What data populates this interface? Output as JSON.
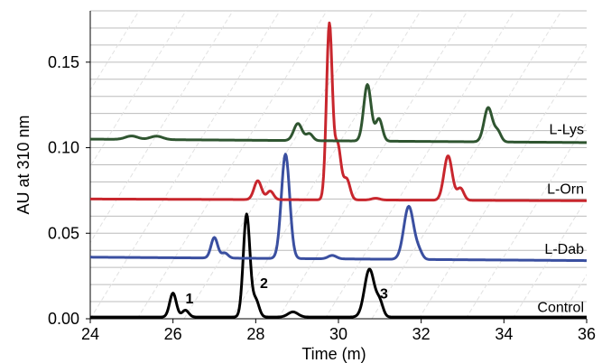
{
  "chart_data": {
    "type": "line",
    "xlabel": "Time (m)",
    "ylabel": "AU at 310 nm",
    "xlim": [
      24,
      36
    ],
    "ylim": [
      0,
      0.18
    ],
    "grid": true,
    "x_ticks": [
      24,
      26,
      28,
      30,
      32,
      34,
      36
    ],
    "y_ticks": [
      0.0,
      0.05,
      0.1,
      0.15
    ],
    "x_tick_labels": [
      "24",
      "26",
      "28",
      "30",
      "32",
      "34",
      "36"
    ],
    "y_tick_labels": [
      "0.00",
      "0.05",
      "0.10",
      "0.15"
    ],
    "series": [
      {
        "name": "Control",
        "color": "#000000",
        "baseline": 0.001,
        "end_baseline": 0.001,
        "peaks": [
          {
            "x": 26.0,
            "height": 0.014,
            "width": 0.08
          },
          {
            "x": 26.3,
            "height": 0.004,
            "width": 0.08
          },
          {
            "x": 27.78,
            "height": 0.06,
            "width": 0.08
          },
          {
            "x": 28.0,
            "height": 0.01,
            "width": 0.08
          },
          {
            "x": 28.9,
            "height": 0.003,
            "width": 0.12
          },
          {
            "x": 30.75,
            "height": 0.028,
            "width": 0.12
          },
          {
            "x": 31.0,
            "height": 0.008,
            "width": 0.08
          }
        ]
      },
      {
        "name": "L-Dab",
        "color": "#3a4fa0",
        "baseline": 0.036,
        "end_baseline": 0.034,
        "peaks": [
          {
            "x": 27.0,
            "height": 0.012,
            "width": 0.08
          },
          {
            "x": 27.25,
            "height": 0.003,
            "width": 0.08
          },
          {
            "x": 28.72,
            "height": 0.061,
            "width": 0.1
          },
          {
            "x": 29.85,
            "height": 0.002,
            "width": 0.1
          },
          {
            "x": 31.7,
            "height": 0.031,
            "width": 0.12
          },
          {
            "x": 31.95,
            "height": 0.004,
            "width": 0.08
          }
        ]
      },
      {
        "name": "L-Orn",
        "color": "#c8262d",
        "baseline": 0.07,
        "end_baseline": 0.069,
        "peaks": [
          {
            "x": 28.05,
            "height": 0.011,
            "width": 0.09
          },
          {
            "x": 28.35,
            "height": 0.005,
            "width": 0.08
          },
          {
            "x": 29.78,
            "height": 0.102,
            "width": 0.07
          },
          {
            "x": 29.98,
            "height": 0.032,
            "width": 0.08
          },
          {
            "x": 30.2,
            "height": 0.012,
            "width": 0.08
          },
          {
            "x": 30.9,
            "height": 0.001,
            "width": 0.1
          },
          {
            "x": 32.65,
            "height": 0.026,
            "width": 0.1
          },
          {
            "x": 32.95,
            "height": 0.007,
            "width": 0.08
          }
        ]
      },
      {
        "name": "L-Lys",
        "color": "#2f5530",
        "baseline": 0.105,
        "end_baseline": 0.103,
        "peaks": [
          {
            "x": 25.0,
            "height": 0.002,
            "width": 0.15
          },
          {
            "x": 25.6,
            "height": 0.002,
            "width": 0.15
          },
          {
            "x": 29.02,
            "height": 0.01,
            "width": 0.1
          },
          {
            "x": 29.3,
            "height": 0.004,
            "width": 0.08
          },
          {
            "x": 30.7,
            "height": 0.033,
            "width": 0.09
          },
          {
            "x": 30.98,
            "height": 0.013,
            "width": 0.08
          },
          {
            "x": 33.62,
            "height": 0.02,
            "width": 0.1
          },
          {
            "x": 33.85,
            "height": 0.006,
            "width": 0.08
          }
        ]
      }
    ],
    "series_labels": [
      {
        "text": "L-Lys",
        "x": 36,
        "y": 0.108
      },
      {
        "text": "L-Orn",
        "x": 36,
        "y": 0.073
      },
      {
        "text": "L-Dab",
        "x": 36,
        "y": 0.038
      },
      {
        "text": "Control",
        "x": 36,
        "y": 0.004
      }
    ],
    "annotations": [
      {
        "text": "1",
        "x": 26.4,
        "y": 0.009
      },
      {
        "text": "2",
        "x": 28.2,
        "y": 0.018
      },
      {
        "text": "3",
        "x": 31.1,
        "y": 0.012
      }
    ]
  }
}
